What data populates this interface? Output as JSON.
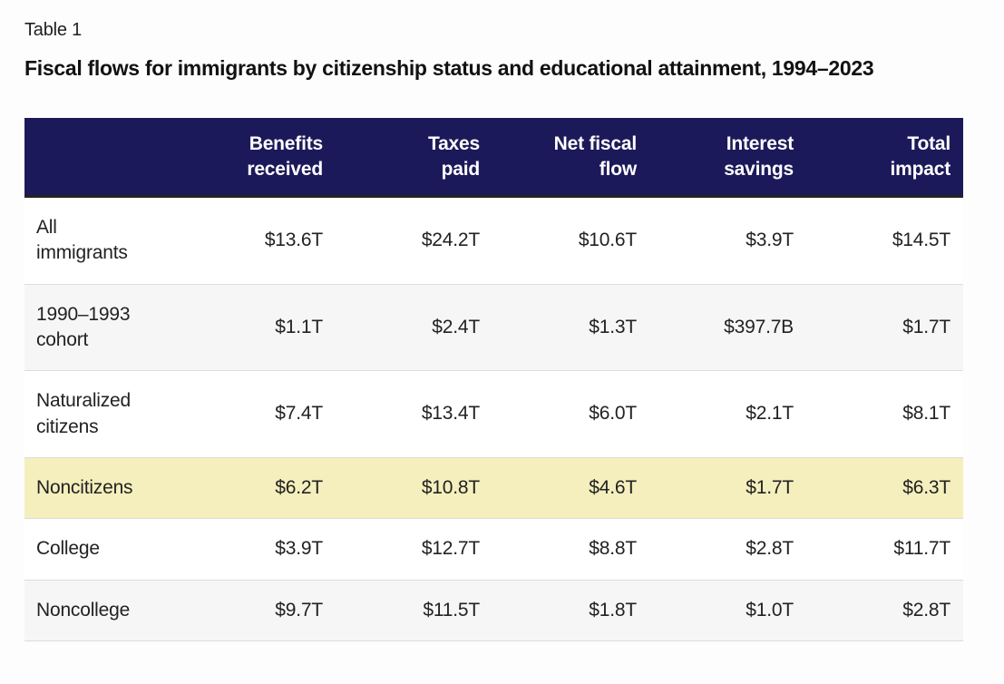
{
  "page": {
    "table_label": "Table 1",
    "title": "Fiscal flows for immigrants by citizenship status and educational attainment, 1994–2023"
  },
  "colors": {
    "header_bg": "#1c195a",
    "header_text": "#ffffff",
    "highlight_row_bg": "#f5efbd",
    "stripe_row_bg": "#f6f6f6",
    "row_border": "#dcdcdc",
    "header_rule": "#222222"
  },
  "chart_data": {
    "type": "table",
    "title": "Fiscal flows for immigrants by citizenship status and educational attainment, 1994–2023",
    "columns": [
      "",
      "Benefits received",
      "Taxes paid",
      "Net fiscal flow",
      "Interest savings",
      "Total impact"
    ],
    "rows": [
      {
        "label": "All immigrants",
        "values": [
          "$13.6T",
          "$24.2T",
          "$10.6T",
          "$3.9T",
          "$14.5T"
        ],
        "highlighted": false
      },
      {
        "label": "1990–1993 cohort",
        "values": [
          "$1.1T",
          "$2.4T",
          "$1.3T",
          "$397.7B",
          "$1.7T"
        ],
        "highlighted": false
      },
      {
        "label": "Naturalized citizens",
        "values": [
          "$7.4T",
          "$13.4T",
          "$6.0T",
          "$2.1T",
          "$8.1T"
        ],
        "highlighted": false
      },
      {
        "label": "Noncitizens",
        "values": [
          "$6.2T",
          "$10.8T",
          "$4.6T",
          "$1.7T",
          "$6.3T"
        ],
        "highlighted": true
      },
      {
        "label": "College",
        "values": [
          "$3.9T",
          "$12.7T",
          "$8.8T",
          "$2.8T",
          "$11.7T"
        ],
        "highlighted": false
      },
      {
        "label": "Noncollege",
        "values": [
          "$9.7T",
          "$11.5T",
          "$1.8T",
          "$1.0T",
          "$2.8T"
        ],
        "highlighted": false
      }
    ]
  }
}
